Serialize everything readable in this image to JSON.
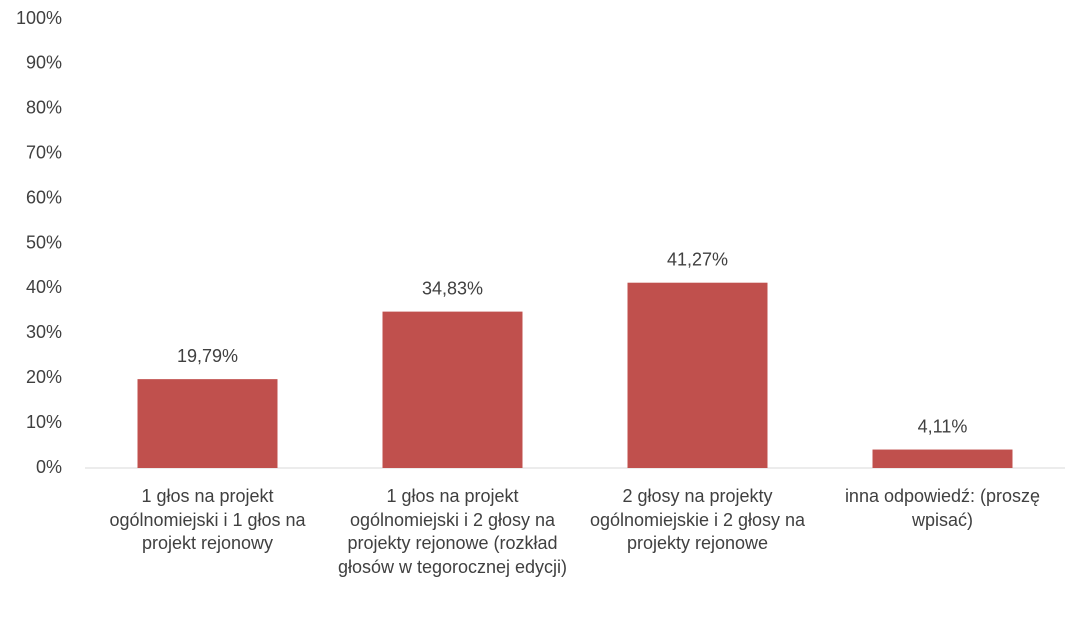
{
  "chart_data": {
    "type": "bar",
    "categories": [
      "1 głos na projekt ogólnomiejski i 1 głos na projekt rejonowy",
      "1 głos na projekt ogólnomiejski i 2 głosy na projekty rejonowe (rozkład głosów w tegorocznej edycji)",
      "2 głosy na projekty ogólnomiejskie i 2 głosy na projekty rejonowe",
      "inna odpowiedź: (proszę wpisać)"
    ],
    "values": [
      19.79,
      34.83,
      41.27,
      4.11
    ],
    "value_labels": [
      "19,79%",
      "34,83%",
      "41,27%",
      "4,11%"
    ],
    "color": "#c0504d",
    "ylim": [
      0,
      100
    ],
    "yticks": [
      {
        "value": 0,
        "label": "0%"
      },
      {
        "value": 10,
        "label": "10%"
      },
      {
        "value": 20,
        "label": "20%"
      },
      {
        "value": 30,
        "label": "30%"
      },
      {
        "value": 40,
        "label": "40%"
      },
      {
        "value": 50,
        "label": "50%"
      },
      {
        "value": 60,
        "label": "60%"
      },
      {
        "value": 70,
        "label": "70%"
      },
      {
        "value": 80,
        "label": "80%"
      },
      {
        "value": 90,
        "label": "90%"
      },
      {
        "value": 100,
        "label": "100%"
      }
    ],
    "grid": false
  }
}
